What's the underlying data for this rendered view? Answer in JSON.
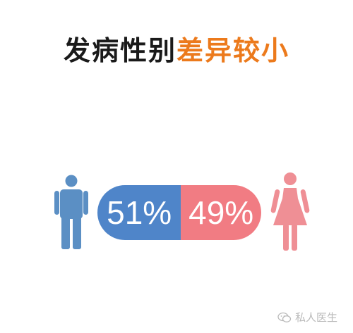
{
  "title": {
    "part1": "发病性别",
    "part2": "差异较小"
  },
  "gender_split": {
    "male_percent": 51,
    "female_percent": 49,
    "male_label": "51%",
    "female_label": "49%"
  },
  "colors": {
    "title_black": "#1a1a1a",
    "title_accent": "#ec7a1c",
    "male": "#4f85c9",
    "female": "#f17c83",
    "male_figure": "#5b8fc4",
    "female_figure": "#ef8f95"
  },
  "icons": {
    "male": "male-person-icon",
    "female": "female-person-icon",
    "watermark": "wechat-icon"
  },
  "watermark": {
    "text": "私人医生"
  }
}
